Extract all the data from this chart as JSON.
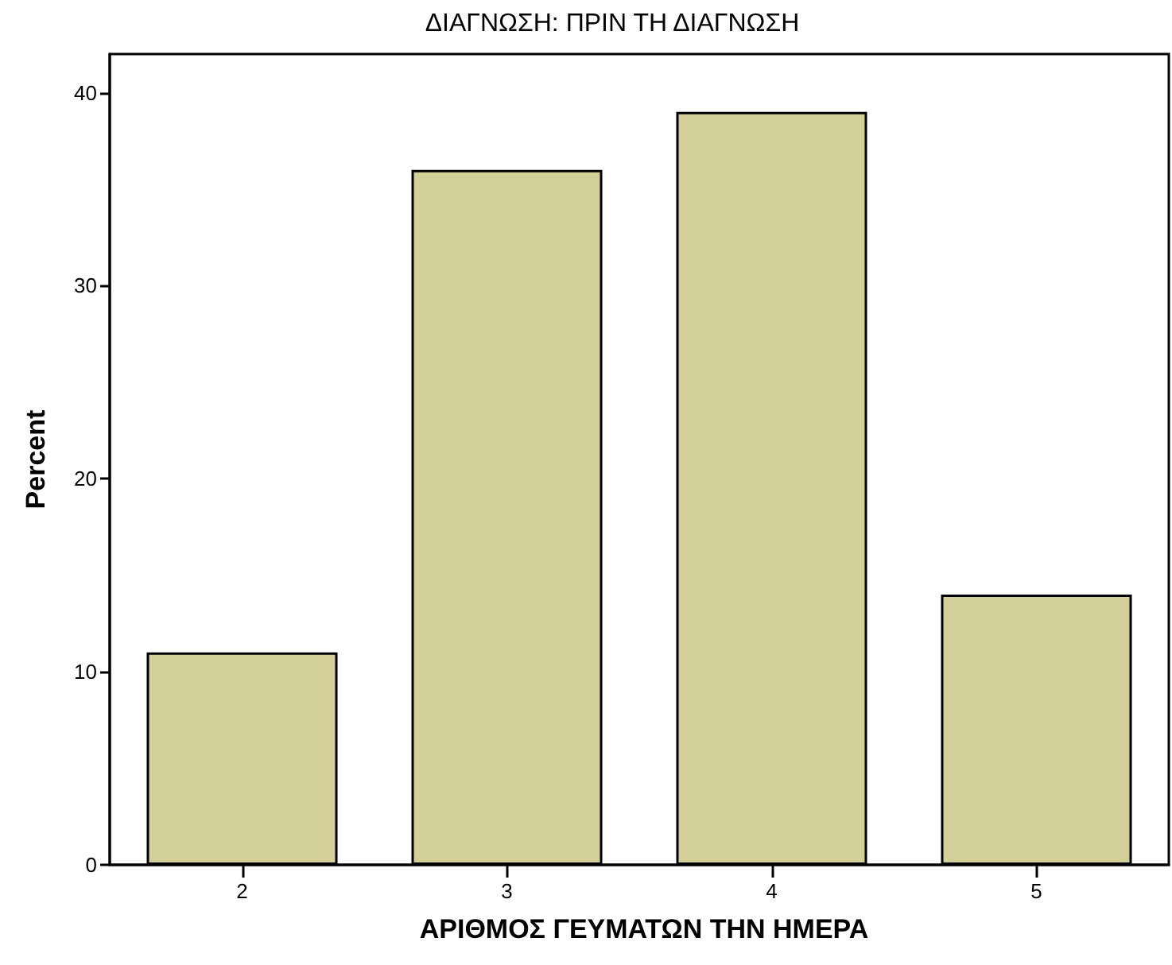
{
  "chart_data": {
    "type": "bar",
    "title": "ΔΙΑΓΝΩΣΗ: ΠΡΙΝ ΤΗ ΔΙΑΓΝΩΣΗ",
    "xlabel": "ΑΡΙΘΜΟΣ ΓΕΥΜΑΤΩΝ ΤΗΝ ΗΜΕΡΑ",
    "ylabel": "Percent",
    "categories": [
      "2",
      "3",
      "4",
      "5"
    ],
    "values": [
      11,
      36,
      39,
      14
    ],
    "color": "#d3cf98",
    "ylim": [
      0,
      42
    ],
    "yticks": [
      0,
      10,
      20,
      30,
      40
    ],
    "grid": false
  }
}
